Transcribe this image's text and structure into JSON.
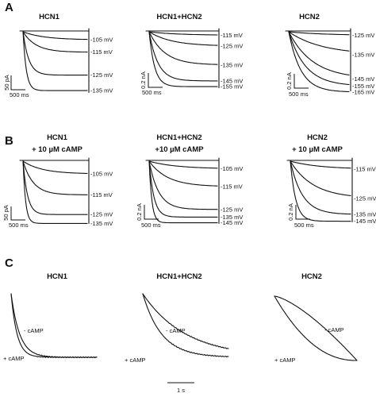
{
  "sections": [
    {
      "letter": "A",
      "panels": [
        {
          "title": [
            "HCN1"
          ],
          "scale": {
            "current": "50 pA",
            "time": "500 ms"
          },
          "traces": [
            {
              "label": "-105 mV",
              "amp": 0.13,
              "tau": 0.33
            },
            {
              "label": "-115 mV",
              "amp": 0.33,
              "tau": 0.2
            },
            {
              "label": "-125 mV",
              "amp": 0.7,
              "tau": 0.09
            },
            {
              "label": "-135 mV",
              "amp": 0.95,
              "tau": 0.05
            }
          ]
        },
        {
          "title": [
            "HCN1+HCN2"
          ],
          "scale": {
            "current": "0.2 nA",
            "time": "500 ms"
          },
          "traces": [
            {
              "label": "-115 mV",
              "amp": 0.06,
              "tau": 0.4
            },
            {
              "label": "-125 mV",
              "amp": 0.25,
              "tau": 0.33
            },
            {
              "label": "-135 mV",
              "amp": 0.58,
              "tau": 0.23
            },
            {
              "label": "-145 mV",
              "amp": 0.86,
              "tau": 0.13
            },
            {
              "label": "-155 mV",
              "amp": 0.96,
              "tau": 0.08
            }
          ]
        },
        {
          "title": [
            "HCN2"
          ],
          "scale": {
            "current": "0.2 nA",
            "time": "500 ms"
          },
          "traces": [
            {
              "label": "-125 mV",
              "amp": 0.06,
              "tau": 0.6
            },
            {
              "label": "-135 mV",
              "amp": 0.38,
              "tau": 0.55
            },
            {
              "label": "-145 mV",
              "amp": 0.78,
              "tau": 0.4
            },
            {
              "label": "-155 mV",
              "amp": 0.9,
              "tau": 0.28
            },
            {
              "label": "-165 mV",
              "amp": 1.0,
              "tau": 0.2
            }
          ]
        }
      ]
    },
    {
      "letter": "B",
      "panels": [
        {
          "title": [
            "HCN1",
            "+ 10 µM cAMP"
          ],
          "scale": {
            "current": "50 pA",
            "time": "500 ms"
          },
          "traces": [
            {
              "label": "-105 mV",
              "amp": 0.2,
              "tau": 0.3
            },
            {
              "label": "-115 mV",
              "amp": 0.53,
              "tau": 0.16
            },
            {
              "label": "-125 mV",
              "amp": 0.84,
              "tau": 0.07
            },
            {
              "label": "-135 mV",
              "amp": 0.98,
              "tau": 0.04
            }
          ]
        },
        {
          "title": [
            "HCN1+HCN2",
            "+10 µM cAMP"
          ],
          "scale": {
            "current": "0.2 nA",
            "time": "500 ms"
          },
          "traces": [
            {
              "label": "-105 mV",
              "amp": 0.12,
              "tau": 0.4
            },
            {
              "label": "-115 mV",
              "amp": 0.4,
              "tau": 0.27
            },
            {
              "label": "-125 mV",
              "amp": 0.76,
              "tau": 0.14
            },
            {
              "label": "-135 mV",
              "amp": 0.88,
              "tau": 0.07
            },
            {
              "label": "-145 mV",
              "amp": 0.97,
              "tau": 0.04
            }
          ]
        },
        {
          "title": [
            "HCN2",
            "+ 10 µM cAMP"
          ],
          "scale": {
            "current": "0.2 nA",
            "time": "500 ms"
          },
          "traces": [
            {
              "label": "-115 mV",
              "amp": 0.13,
              "tau": 0.5
            },
            {
              "label": "-125 mV",
              "amp": 0.6,
              "tau": 0.38
            },
            {
              "label": "-135 mV",
              "amp": 0.86,
              "tau": 0.2
            },
            {
              "label": "-145 mV",
              "amp": 0.97,
              "tau": 0.09
            }
          ]
        }
      ]
    },
    {
      "letter": "C",
      "panels": [
        {
          "title": [
            "HCN1"
          ],
          "labels": {
            "minus": "- cAMP",
            "plus": "+ cAMP"
          },
          "tau_minus": 0.1,
          "tau_plus": 0.07,
          "shape": "exp"
        },
        {
          "title": [
            "HCN1+HCN2"
          ],
          "labels": {
            "minus": "- cAMP",
            "plus": "+ cAMP"
          },
          "tau_minus": 0.5,
          "tau_plus": 0.22,
          "shape": "exp"
        },
        {
          "title": [
            "HCN2"
          ],
          "labels": {
            "minus": "- cAMP",
            "plus": "+ cAMP"
          },
          "shape": "sigmoid"
        }
      ],
      "scale": {
        "time": "1 s"
      }
    }
  ]
}
